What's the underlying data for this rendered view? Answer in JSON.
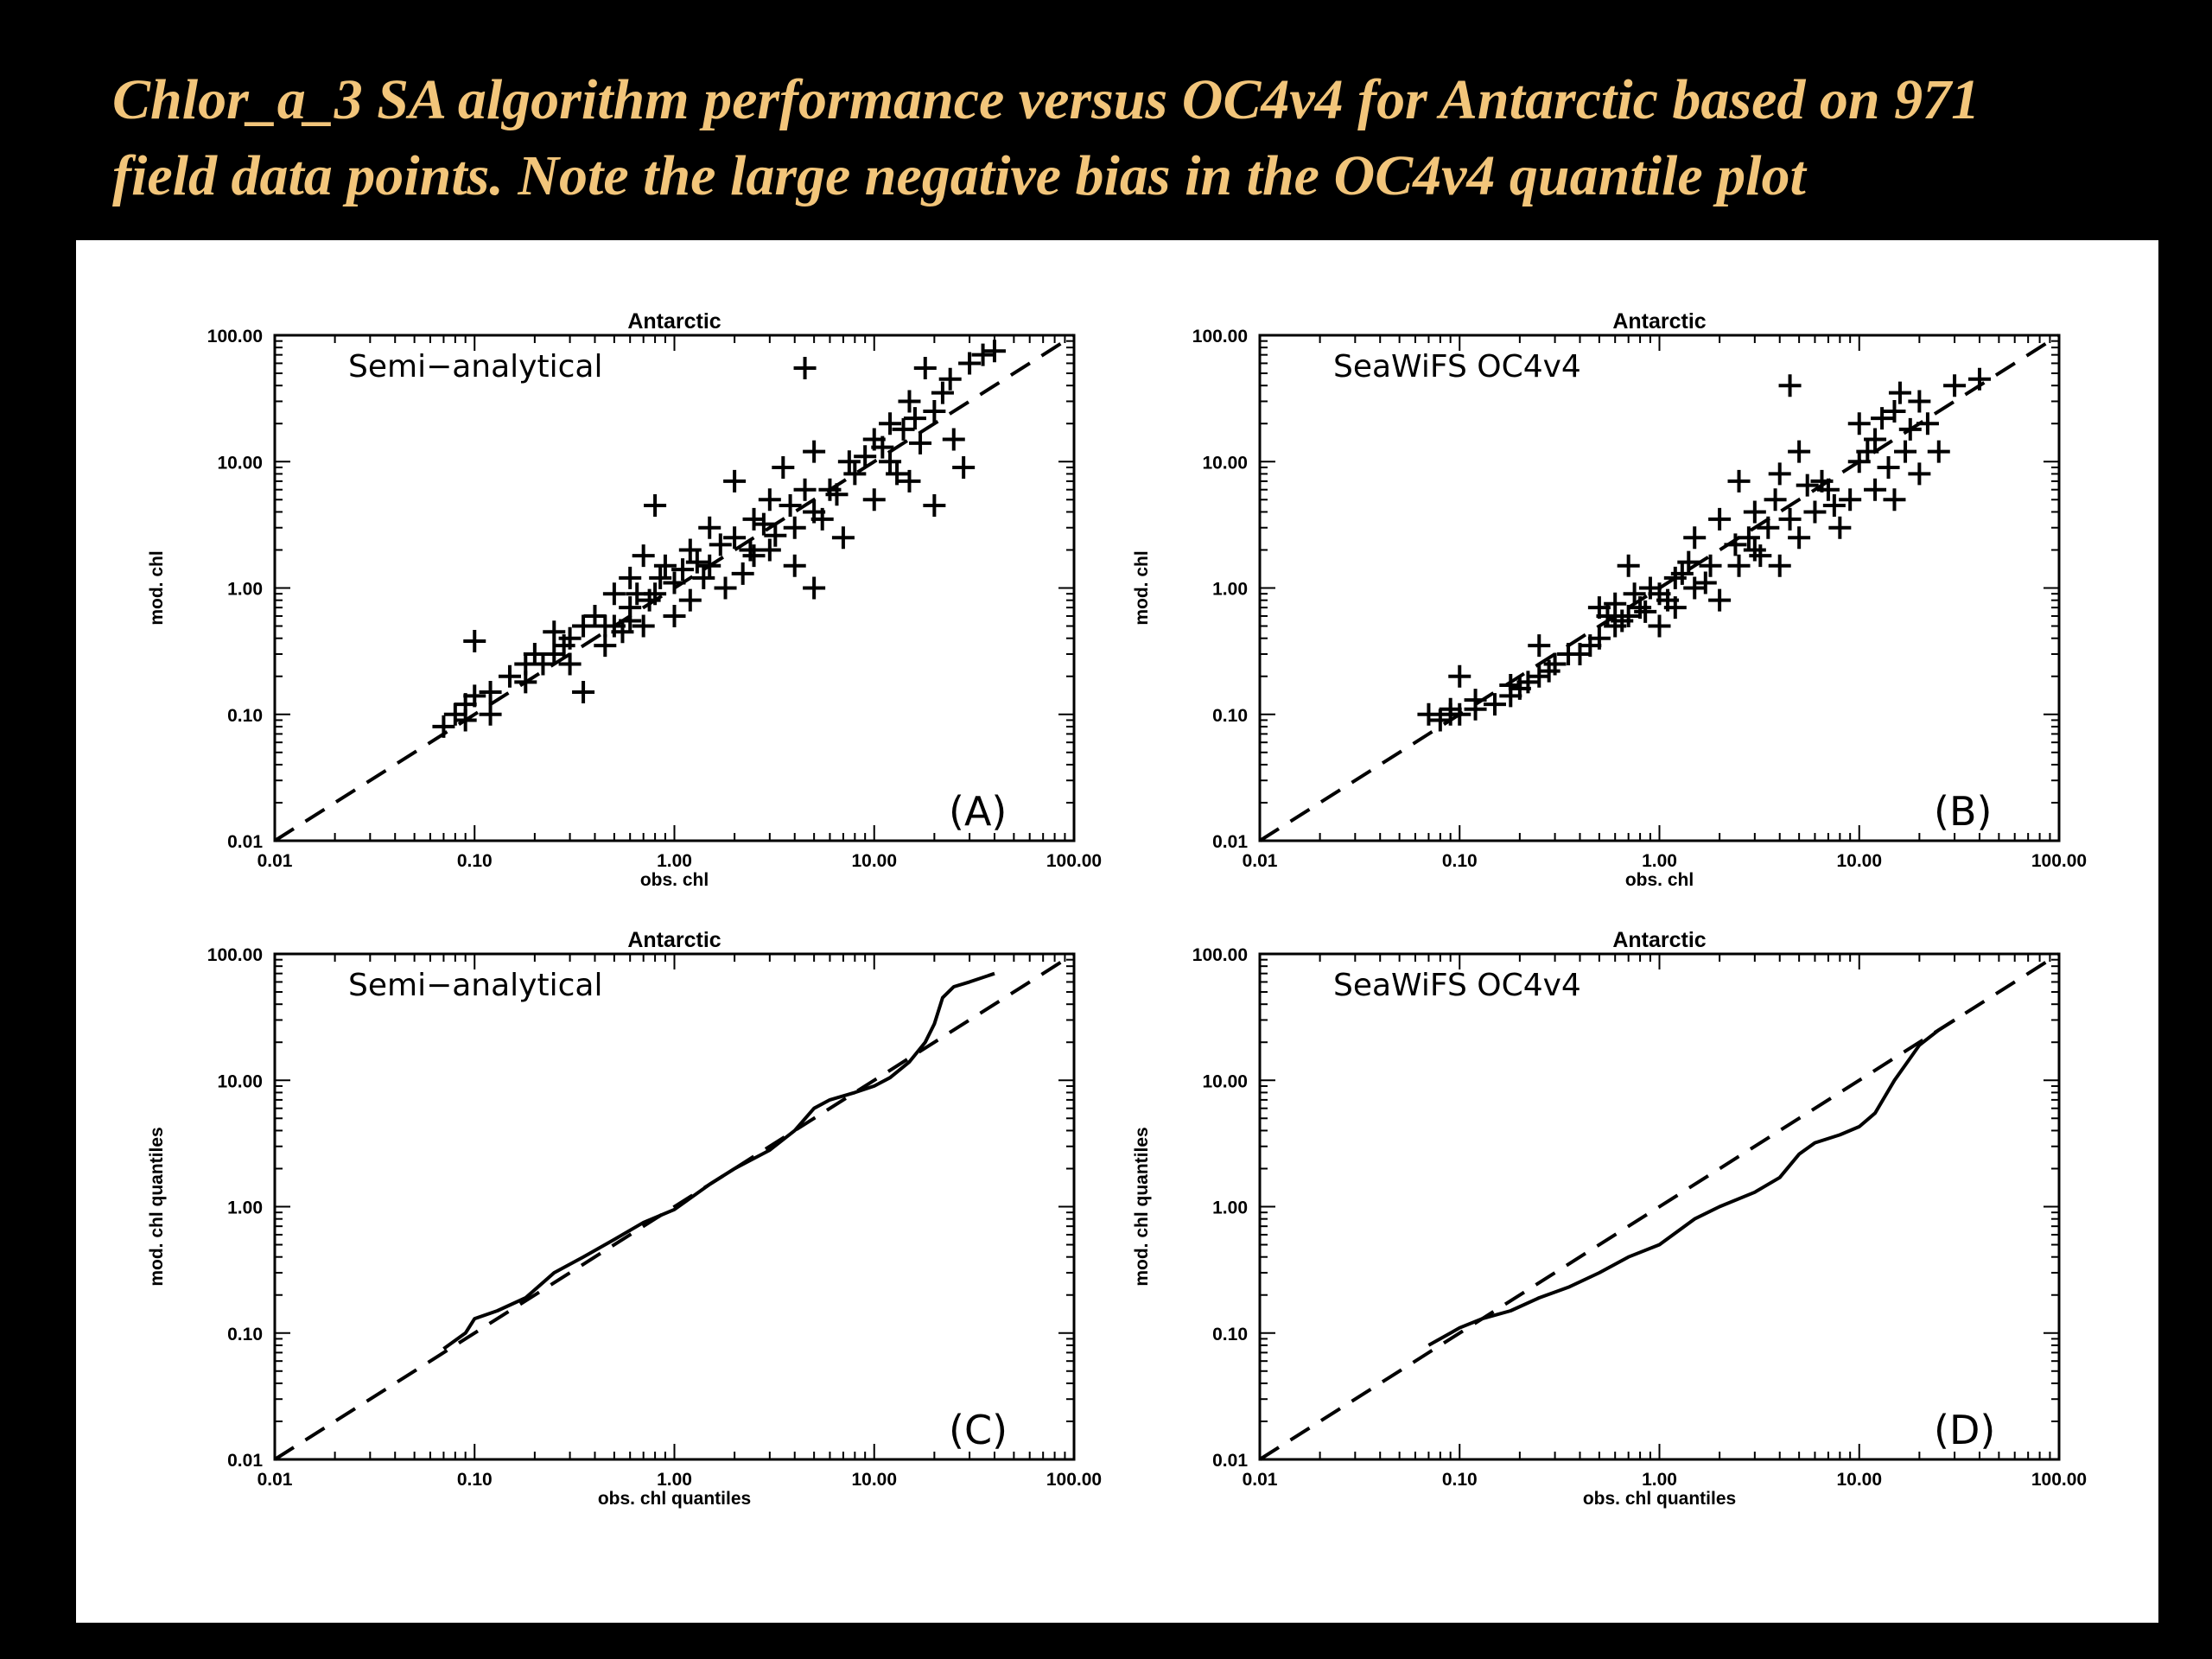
{
  "slide": {
    "title_line1": "Chlor_a_3 SA algorithm performance versus OC4v4 for Antarctic based on 971",
    "title_line2": "field data points. Note the large negative bias in the OC4v4 quantile plot",
    "title_color": "#f2c57a",
    "background": "#000000"
  },
  "chart_data": [
    {
      "type": "scatter",
      "panel": "A",
      "title": "Antarctic",
      "annotation": "Semi−analytical",
      "panel_label": "(A)",
      "xlabel": "obs. chl",
      "ylabel": "mod. chl",
      "xscale": "log",
      "yscale": "log",
      "xlim": [
        0.01,
        100
      ],
      "ylim": [
        0.01,
        100
      ],
      "x_ticks": [
        "0.01",
        "0.10",
        "1.00",
        "10.00",
        "100.00"
      ],
      "y_ticks": [
        "0.01",
        "0.10",
        "1.00",
        "10.00",
        "100.00"
      ],
      "reference_line": "1:1 dashed",
      "marker": "plus",
      "points": [
        [
          0.07,
          0.08
        ],
        [
          0.08,
          0.1
        ],
        [
          0.09,
          0.12
        ],
        [
          0.1,
          0.14
        ],
        [
          0.1,
          0.38
        ],
        [
          0.12,
          0.15
        ],
        [
          0.15,
          0.2
        ],
        [
          0.18,
          0.18
        ],
        [
          0.2,
          0.3
        ],
        [
          0.25,
          0.3
        ],
        [
          0.25,
          0.45
        ],
        [
          0.3,
          0.4
        ],
        [
          0.3,
          0.25
        ],
        [
          0.35,
          0.15
        ],
        [
          0.35,
          0.5
        ],
        [
          0.4,
          0.6
        ],
        [
          0.45,
          0.35
        ],
        [
          0.5,
          0.5
        ],
        [
          0.5,
          0.9
        ],
        [
          0.6,
          0.7
        ],
        [
          0.6,
          1.2
        ],
        [
          0.7,
          0.5
        ],
        [
          0.7,
          1.8
        ],
        [
          0.8,
          0.9
        ],
        [
          0.8,
          4.5
        ],
        [
          0.9,
          1.5
        ],
        [
          1.0,
          0.6
        ],
        [
          1.0,
          1.1
        ],
        [
          1.2,
          2.0
        ],
        [
          1.2,
          0.8
        ],
        [
          1.5,
          1.5
        ],
        [
          1.5,
          3.0
        ],
        [
          1.8,
          1.0
        ],
        [
          2.0,
          2.5
        ],
        [
          2.0,
          7.0
        ],
        [
          2.2,
          1.3
        ],
        [
          2.5,
          3.5
        ],
        [
          2.5,
          1.8
        ],
        [
          3.0,
          2.0
        ],
        [
          3.0,
          5.0
        ],
        [
          3.5,
          9.0
        ],
        [
          4.0,
          3.0
        ],
        [
          4.0,
          1.5
        ],
        [
          4.5,
          55
        ],
        [
          5.0,
          4.0
        ],
        [
          5.0,
          1.0
        ],
        [
          5.0,
          12
        ],
        [
          6.0,
          6.0
        ],
        [
          7.0,
          2.5
        ],
        [
          8.0,
          8.0
        ],
        [
          10,
          15
        ],
        [
          10,
          5.0
        ],
        [
          12,
          20
        ],
        [
          12,
          10
        ],
        [
          15,
          30
        ],
        [
          15,
          7
        ],
        [
          18,
          55
        ],
        [
          20,
          25
        ],
        [
          20,
          4.5
        ],
        [
          25,
          15
        ],
        [
          28,
          9
        ],
        [
          30,
          60
        ],
        [
          35,
          70
        ],
        [
          40,
          75
        ],
        [
          0.12,
          0.1
        ],
        [
          0.22,
          0.25
        ],
        [
          0.28,
          0.35
        ],
        [
          0.45,
          0.5
        ],
        [
          0.55,
          0.45
        ],
        [
          0.65,
          0.9
        ],
        [
          0.75,
          0.8
        ],
        [
          0.85,
          1.2
        ],
        [
          1.1,
          1.4
        ],
        [
          1.3,
          1.6
        ],
        [
          1.7,
          2.2
        ],
        [
          2.8,
          3.2
        ],
        [
          3.2,
          2.6
        ],
        [
          3.8,
          4.5
        ],
        [
          6.5,
          5.5
        ],
        [
          9,
          11
        ],
        [
          11,
          13
        ],
        [
          14,
          18
        ],
        [
          16,
          22
        ],
        [
          22,
          35
        ],
        [
          0.09,
          0.09
        ],
        [
          0.18,
          0.25
        ],
        [
          0.6,
          0.55
        ],
        [
          1.4,
          1.2
        ],
        [
          2.4,
          2.0
        ],
        [
          4.5,
          6.0
        ],
        [
          5.5,
          3.5
        ],
        [
          7.5,
          10
        ],
        [
          13,
          8
        ],
        [
          17,
          14
        ],
        [
          24,
          45
        ]
      ]
    },
    {
      "type": "scatter",
      "panel": "B",
      "title": "Antarctic",
      "annotation": "SeaWiFS  OC4v4",
      "panel_label": "(B)",
      "xlabel": "obs. chl",
      "ylabel": "mod. chl",
      "xscale": "log",
      "yscale": "log",
      "xlim": [
        0.01,
        100
      ],
      "ylim": [
        0.01,
        100
      ],
      "x_ticks": [
        "0.01",
        "0.10",
        "1.00",
        "10.00",
        "100.00"
      ],
      "y_ticks": [
        "0.01",
        "0.10",
        "1.00",
        "10.00",
        "100.00"
      ],
      "reference_line": "1:1 dashed",
      "marker": "plus",
      "points": [
        [
          0.07,
          0.1
        ],
        [
          0.08,
          0.09
        ],
        [
          0.09,
          0.11
        ],
        [
          0.1,
          0.1
        ],
        [
          0.1,
          0.2
        ],
        [
          0.12,
          0.11
        ],
        [
          0.15,
          0.12
        ],
        [
          0.18,
          0.14
        ],
        [
          0.2,
          0.16
        ],
        [
          0.25,
          0.2
        ],
        [
          0.25,
          0.35
        ],
        [
          0.3,
          0.25
        ],
        [
          0.35,
          0.3
        ],
        [
          0.4,
          0.3
        ],
        [
          0.5,
          0.4
        ],
        [
          0.5,
          0.7
        ],
        [
          0.6,
          0.5
        ],
        [
          0.7,
          0.6
        ],
        [
          0.7,
          1.5
        ],
        [
          0.8,
          0.7
        ],
        [
          0.9,
          1.0
        ],
        [
          1.0,
          0.5
        ],
        [
          1.0,
          0.9
        ],
        [
          1.2,
          1.2
        ],
        [
          1.2,
          0.7
        ],
        [
          1.5,
          1.0
        ],
        [
          1.5,
          2.5
        ],
        [
          1.8,
          1.5
        ],
        [
          2.0,
          0.8
        ],
        [
          2.0,
          3.5
        ],
        [
          2.5,
          1.5
        ],
        [
          2.5,
          7
        ],
        [
          3.0,
          2.0
        ],
        [
          3.0,
          4.0
        ],
        [
          3.5,
          3.0
        ],
        [
          4.0,
          1.5
        ],
        [
          4.0,
          8.0
        ],
        [
          4.5,
          40
        ],
        [
          5.0,
          2.5
        ],
        [
          5.0,
          12
        ],
        [
          6.0,
          4.0
        ],
        [
          7.0,
          6.0
        ],
        [
          8.0,
          3.0
        ],
        [
          10,
          10
        ],
        [
          10,
          20
        ],
        [
          12,
          6
        ],
        [
          12,
          15
        ],
        [
          15,
          25
        ],
        [
          15,
          5
        ],
        [
          18,
          18
        ],
        [
          20,
          30
        ],
        [
          20,
          8
        ],
        [
          25,
          12
        ],
        [
          30,
          40
        ],
        [
          40,
          45
        ],
        [
          0.12,
          0.13
        ],
        [
          0.22,
          0.18
        ],
        [
          0.28,
          0.22
        ],
        [
          0.45,
          0.35
        ],
        [
          0.55,
          0.6
        ],
        [
          0.65,
          0.55
        ],
        [
          0.75,
          0.9
        ],
        [
          0.85,
          0.65
        ],
        [
          1.1,
          0.8
        ],
        [
          1.3,
          1.3
        ],
        [
          1.7,
          1.1
        ],
        [
          2.8,
          2.5
        ],
        [
          3.2,
          1.8
        ],
        [
          3.8,
          5.0
        ],
        [
          6.5,
          7.0
        ],
        [
          9,
          5
        ],
        [
          11,
          12
        ],
        [
          14,
          9
        ],
        [
          16,
          35
        ],
        [
          22,
          20
        ],
        [
          0.09,
          0.1
        ],
        [
          0.18,
          0.17
        ],
        [
          0.6,
          0.75
        ],
        [
          1.4,
          1.6
        ],
        [
          2.4,
          2.2
        ],
        [
          4.5,
          3.5
        ],
        [
          5.5,
          6.5
        ],
        [
          7.5,
          4.5
        ],
        [
          13,
          22
        ],
        [
          17,
          12
        ]
      ]
    },
    {
      "type": "line",
      "panel": "C",
      "title": "Antarctic",
      "annotation": "Semi−analytical",
      "panel_label": "(C)",
      "xlabel": "obs. chl quantiles",
      "ylabel": "mod. chl quantiles",
      "xscale": "log",
      "yscale": "log",
      "xlim": [
        0.01,
        100
      ],
      "ylim": [
        0.01,
        100
      ],
      "x_ticks": [
        "0.01",
        "0.10",
        "1.00",
        "10.00",
        "100.00"
      ],
      "y_ticks": [
        "0.01",
        "0.10",
        "1.00",
        "10.00",
        "100.00"
      ],
      "reference_line": "1:1 dashed",
      "series": [
        {
          "x": [
            0.07,
            0.09,
            0.1,
            0.13,
            0.18,
            0.25,
            0.35,
            0.5,
            0.7,
            1.0,
            1.5,
            2.0,
            3.0,
            4.0,
            5.0,
            6.0,
            8.0,
            10,
            12,
            15,
            18,
            20,
            22,
            25,
            30,
            40
          ],
          "y": [
            0.075,
            0.1,
            0.13,
            0.15,
            0.19,
            0.3,
            0.4,
            0.55,
            0.75,
            0.95,
            1.5,
            2.0,
            2.8,
            4.0,
            6.0,
            7.0,
            8.0,
            9.0,
            10.5,
            14,
            20,
            28,
            45,
            55,
            60,
            70
          ]
        }
      ]
    },
    {
      "type": "line",
      "panel": "D",
      "title": "Antarctic",
      "annotation": "SeaWiFS  OC4v4",
      "panel_label": "(D)",
      "xlabel": "obs. chl quantiles",
      "ylabel": "mod. chl quantiles",
      "xscale": "log",
      "yscale": "log",
      "xlim": [
        0.01,
        100
      ],
      "ylim": [
        0.01,
        100
      ],
      "x_ticks": [
        "0.01",
        "0.10",
        "1.00",
        "10.00",
        "100.00"
      ],
      "y_ticks": [
        "0.01",
        "0.10",
        "1.00",
        "10.00",
        "100.00"
      ],
      "reference_line": "1:1 dashed",
      "series": [
        {
          "x": [
            0.07,
            0.09,
            0.1,
            0.13,
            0.18,
            0.25,
            0.35,
            0.5,
            0.7,
            1.0,
            1.5,
            2.0,
            3.0,
            4.0,
            5.0,
            6.0,
            8.0,
            10,
            12,
            15,
            18,
            20,
            25,
            30
          ],
          "y": [
            0.08,
            0.1,
            0.11,
            0.13,
            0.15,
            0.19,
            0.23,
            0.3,
            0.4,
            0.5,
            0.8,
            1.0,
            1.3,
            1.7,
            2.6,
            3.2,
            3.7,
            4.3,
            5.5,
            10,
            15,
            19,
            25,
            30
          ]
        }
      ]
    }
  ]
}
